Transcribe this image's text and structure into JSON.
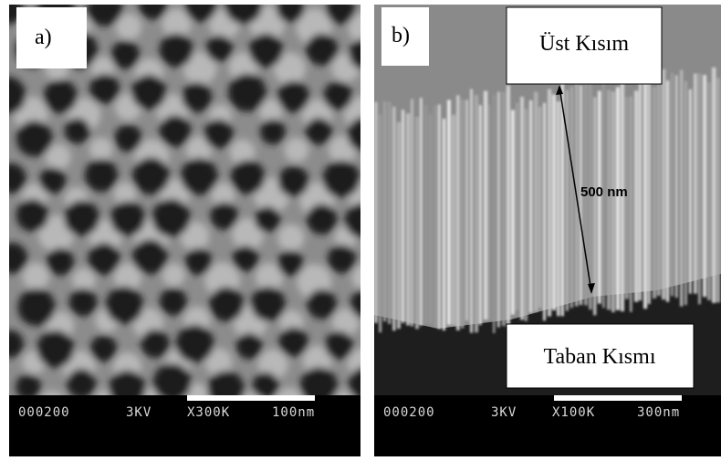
{
  "panels": [
    {
      "label": "a)",
      "info": {
        "id": "000200",
        "kv": "3KV",
        "mag": "X300K",
        "scale": "100nm"
      }
    },
    {
      "label": "b)",
      "info": {
        "id": "000200",
        "kv": "3KV",
        "mag": "X100K",
        "scale": "300nm"
      },
      "top_label": "Üst Kısım",
      "bottom_label": "Taban Kısmı",
      "measurement": "500 nm"
    }
  ]
}
